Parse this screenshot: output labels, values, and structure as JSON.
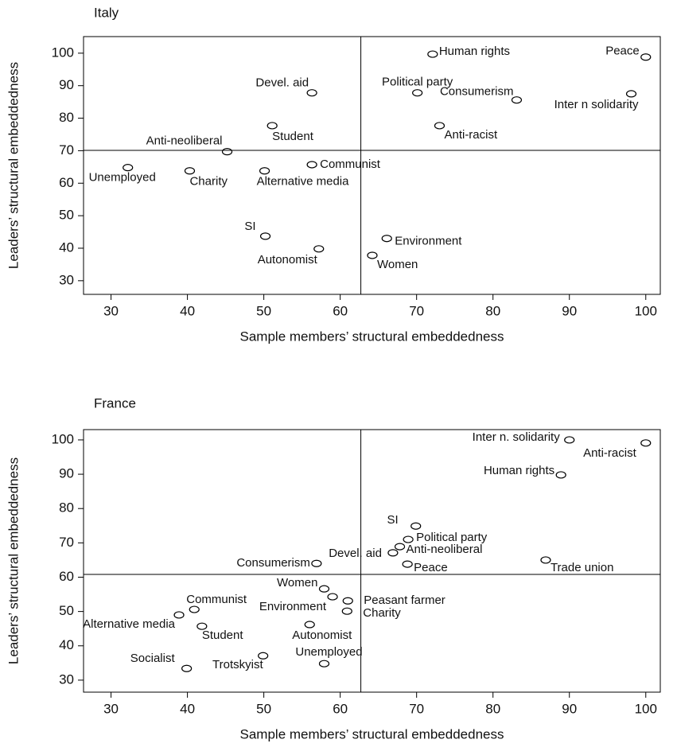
{
  "chart_data": [
    {
      "type": "scatter",
      "title": "Italy",
      "x_label": "Sample members’ structural embeddedness",
      "y_label": "Leaders’ structural embeddedness",
      "xlim": [
        26.4,
        101.9
      ],
      "ylim": [
        25.8,
        105.1
      ],
      "xticks": [
        30,
        40,
        50,
        60,
        70,
        80,
        90,
        100
      ],
      "yticks": [
        30,
        40,
        50,
        60,
        70,
        80,
        90,
        100
      ],
      "reference_lines": {
        "x": 62.7,
        "y": 70.1
      },
      "color": "#000000",
      "labels": [
        "Human rights",
        "Peace",
        "Devel. aid",
        "Political party",
        "Consumerism",
        "Inter n solidarity",
        "Student",
        "Anti-racist",
        "Anti-neoliberal",
        "Unemployed",
        "Charity",
        "Alternative media",
        "Communist",
        "SI",
        "Autonomist",
        "Environment",
        "Women"
      ],
      "x": [
        72.1,
        100,
        56.3,
        70.1,
        83.1,
        98.1,
        51.1,
        73.0,
        45.2,
        32.2,
        40.3,
        50.1,
        56.3,
        50.2,
        57.2,
        66.1,
        64.2
      ],
      "y": [
        99.7,
        98.8,
        87.8,
        87.8,
        85.6,
        87.5,
        77.7,
        77.7,
        69.7,
        64.8,
        63.8,
        63.8,
        65.7,
        43.7,
        39.8,
        43.0,
        37.8
      ]
    },
    {
      "type": "scatter",
      "title": "France",
      "x_label": "Sample members’ structural embeddedness",
      "y_label": "Leaders’ structural embeddedness",
      "xlim": [
        26.4,
        101.9
      ],
      "ylim": [
        26.5,
        103.0
      ],
      "xticks": [
        30,
        40,
        50,
        60,
        70,
        80,
        90,
        100
      ],
      "yticks": [
        30,
        40,
        50,
        60,
        70,
        80,
        90,
        100
      ],
      "reference_lines": {
        "x": 62.7,
        "y": 60.8
      },
      "color": "#000000",
      "labels": [
        "Inter n. solidarity",
        "Anti-racist",
        "Human rights",
        "SI",
        "Political party",
        "Anti-neoliberal",
        "Devel. aid",
        "Peace",
        "Consumerism",
        "Trade union",
        "Women",
        "Environment",
        "Peasant farmer",
        "Charity",
        "Communist",
        "Alternative media",
        "Student",
        "Autonomist",
        "Unemployed",
        "Trotskyist",
        "Socialist"
      ],
      "x": [
        90.0,
        100,
        88.9,
        69.9,
        68.9,
        67.8,
        66.9,
        68.8,
        56.9,
        86.9,
        57.9,
        59.0,
        61.0,
        60.9,
        40.9,
        38.9,
        41.9,
        56.0,
        57.9,
        49.9,
        39.9
      ],
      "y": [
        100,
        99.1,
        89.8,
        74.9,
        71.0,
        68.9,
        67.1,
        63.8,
        64.0,
        65.0,
        56.6,
        54.3,
        53.1,
        50.1,
        50.6,
        49.0,
        45.7,
        46.2,
        34.8,
        37.1,
        33.4
      ]
    }
  ]
}
